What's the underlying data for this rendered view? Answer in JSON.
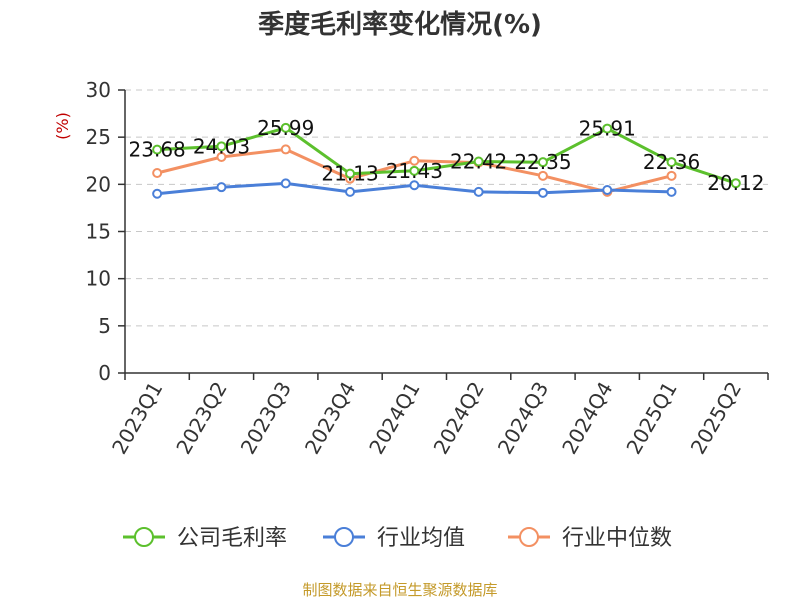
{
  "chart_data": {
    "type": "line",
    "title": "季度毛利率变化情况(%)",
    "ylabel": "(%)",
    "xlabel": "",
    "ylim": [
      0,
      30
    ],
    "yticks": [
      0,
      5,
      10,
      15,
      20,
      25,
      30
    ],
    "grid": true,
    "legend_position": "bottom",
    "categories": [
      "2023Q1",
      "2023Q2",
      "2023Q3",
      "2023Q4",
      "2024Q1",
      "2024Q2",
      "2024Q3",
      "2024Q4",
      "2025Q1",
      "2025Q2"
    ],
    "series": [
      {
        "name": "公司毛利率",
        "color": "#5cc02d",
        "show_labels": true,
        "values": [
          23.68,
          24.03,
          25.99,
          21.13,
          21.43,
          22.42,
          22.35,
          25.91,
          22.36,
          20.12
        ]
      },
      {
        "name": "行业均值",
        "color": "#4a7fd8",
        "show_labels": false,
        "values": [
          19.0,
          19.7,
          20.1,
          19.2,
          19.9,
          19.2,
          19.1,
          19.4,
          19.2,
          null
        ]
      },
      {
        "name": "行业中位数",
        "color": "#f39062",
        "show_labels": false,
        "values": [
          21.2,
          22.9,
          23.7,
          20.6,
          22.5,
          22.3,
          20.9,
          19.2,
          20.9,
          null
        ]
      }
    ]
  },
  "source_text": "制图数据来自恒生聚源数据库"
}
